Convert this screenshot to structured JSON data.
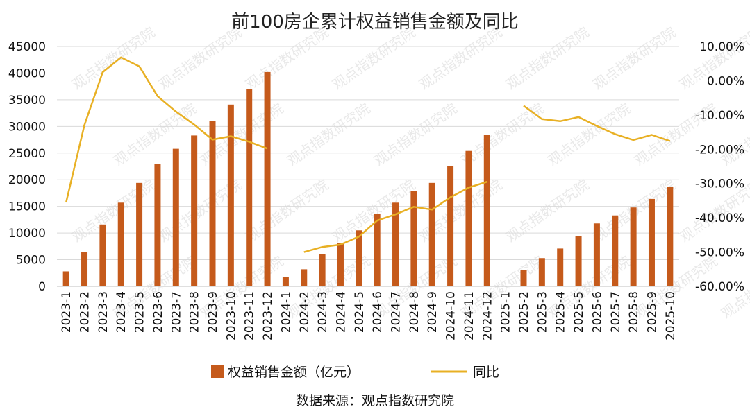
{
  "chart_data": {
    "type": "bar+line",
    "title": "前100房企累计权益销售金额及同比",
    "categories": [
      "2023-1",
      "2023-2",
      "2023-3",
      "2023-4",
      "2023-5",
      "2023-6",
      "2023-7",
      "2023-8",
      "2023-9",
      "2023-10",
      "2023-11",
      "2023-12",
      "2024-1",
      "2024-2",
      "2024-3",
      "2024-4",
      "2024-5",
      "2024-6",
      "2024-7",
      "2024-8",
      "2024-9",
      "2024-10",
      "2024-11",
      "2024-12",
      "2025-1",
      "2025-2",
      "2025-3",
      "2025-4",
      "2025-5",
      "2025-6",
      "2025-7",
      "2025-8",
      "2025-9",
      "2025-10"
    ],
    "series": [
      {
        "name": "权益销售金额（亿元）",
        "type": "bar",
        "axis": "left",
        "color": "#C55A1B",
        "values": [
          2800,
          6500,
          11600,
          15700,
          19400,
          23000,
          25800,
          28300,
          31000,
          34100,
          37000,
          40200,
          1800,
          3200,
          6000,
          8100,
          10500,
          13600,
          15700,
          17900,
          19400,
          22600,
          25400,
          28400,
          null,
          3000,
          5300,
          7100,
          9400,
          11800,
          13300,
          14800,
          16400,
          18700
        ]
      },
      {
        "name": "同比",
        "type": "line",
        "axis": "right",
        "color": "#E8B024",
        "values": [
          -35.5,
          -13.0,
          2.5,
          6.8,
          4.2,
          -4.5,
          -9.0,
          -12.8,
          -17.2,
          -16.2,
          -17.8,
          -19.8,
          null,
          -50.0,
          -48.5,
          -47.8,
          -45.5,
          -40.8,
          -39.0,
          -36.8,
          -37.6,
          -34.0,
          -31.2,
          -29.5,
          null,
          -7.3,
          -11.2,
          -11.8,
          -10.6,
          -13.2,
          -15.6,
          -17.3,
          -15.8,
          -17.6
        ]
      }
    ],
    "left_axis": {
      "min": 0,
      "max": 45000,
      "ticks": [
        "0",
        "5000",
        "10000",
        "15000",
        "20000",
        "25000",
        "30000",
        "35000",
        "40000",
        "45000"
      ]
    },
    "right_axis": {
      "min": -60,
      "max": 10,
      "ticks": [
        "-60.00%",
        "-50.00%",
        "-40.00%",
        "-30.00%",
        "-20.00%",
        "-10.00%",
        "0.00%",
        "10.00%"
      ]
    },
    "grid": true,
    "legend_position": "bottom"
  },
  "footer": {
    "source": "数据来源：观点指数研究院"
  },
  "watermark": "观点指数研究院"
}
